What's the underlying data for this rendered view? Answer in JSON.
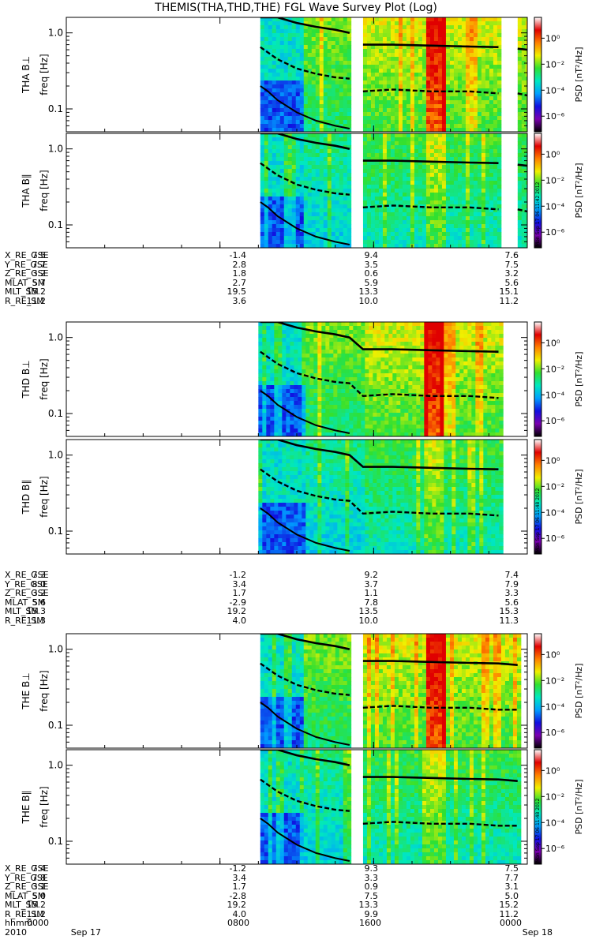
{
  "title": "THEMIS(THA,THD,THE) FGL Wave Survey Plot (Log)",
  "chart_data": {
    "type": "heatmap",
    "x_range_hours": [
      0,
      24
    ],
    "y_range_hz": [
      0.05,
      1.6
    ],
    "y_scale": "log",
    "y_ticks": [
      "1.0",
      "0.1"
    ],
    "y_tick_values": [
      1.0,
      0.1
    ],
    "colorbar": {
      "title": "PSD [nT²/Hz]",
      "tick_exponents": [
        0,
        -2,
        -4,
        -6
      ],
      "tick_labels": [
        "10⁰",
        "10⁻²",
        "10⁻⁴",
        "10⁻⁶"
      ],
      "colors": [
        "#000000",
        "#7a00b0",
        "#1010e0",
        "#00a0ff",
        "#00e8c0",
        "#30e030",
        "#f0f000",
        "#ff8000",
        "#e00000",
        "#ffffff"
      ]
    },
    "panels": [
      {
        "probe": "THA",
        "ylabel": "THA B⊥",
        "ylabel2": "freq [Hz]",
        "data_segments": [
          [
            10.1,
            14.75
          ],
          [
            15.45,
            22.55
          ],
          [
            23.5,
            24
          ]
        ],
        "intensity": "high",
        "stamp": ""
      },
      {
        "probe": "THA",
        "ylabel": "THA B∥",
        "ylabel2": "freq [Hz]",
        "data_segments": [
          [
            10.1,
            14.75
          ],
          [
            15.45,
            22.55
          ],
          [
            23.5,
            24
          ]
        ],
        "intensity": "medium",
        "stamp": "Mon Sep 17 06:11:42 2012"
      },
      {
        "probe": "THD",
        "ylabel": "THD B⊥",
        "ylabel2": "freq [Hz]",
        "data_segments": [
          [
            10.0,
            22.55
          ]
        ],
        "intensity": "high",
        "stamp": ""
      },
      {
        "probe": "THD",
        "ylabel": "THD B∥",
        "ylabel2": "freq [Hz]",
        "data_segments": [
          [
            10.0,
            22.55
          ]
        ],
        "intensity": "medium",
        "stamp": "Mon Sep 17 06:11:48 2012"
      },
      {
        "probe": "THE",
        "ylabel": "THE B⊥",
        "ylabel2": "freq [Hz]",
        "data_segments": [
          [
            10.1,
            14.75
          ],
          [
            15.45,
            23.5
          ]
        ],
        "intensity": "high",
        "stamp": ""
      },
      {
        "probe": "THE",
        "ylabel": "THE B∥",
        "ylabel2": "freq [Hz]",
        "data_segments": [
          [
            10.1,
            14.75
          ],
          [
            15.45,
            23.5
          ]
        ],
        "intensity": "medium",
        "stamp": "Mon Sep 17 06:11:48 2012"
      }
    ],
    "gyro_lines": {
      "fgc_curve": [
        [
          10.1,
          2.0
        ],
        [
          11,
          1.6
        ],
        [
          12,
          1.35
        ],
        [
          13,
          1.2
        ],
        [
          14,
          1.1
        ],
        [
          14.75,
          1.0
        ],
        [
          15.45,
          0.7
        ],
        [
          17,
          0.7
        ],
        [
          19,
          0.68
        ],
        [
          21,
          0.66
        ],
        [
          22.5,
          0.65
        ],
        [
          23.5,
          0.62
        ],
        [
          24,
          0.6
        ]
      ],
      "half_curve": [
        [
          10.1,
          0.65
        ],
        [
          11,
          0.45
        ],
        [
          12,
          0.34
        ],
        [
          13,
          0.29
        ],
        [
          14,
          0.26
        ],
        [
          14.75,
          0.25
        ],
        [
          15.45,
          0.17
        ],
        [
          17,
          0.18
        ],
        [
          19,
          0.17
        ],
        [
          21,
          0.17
        ],
        [
          22.5,
          0.16
        ],
        [
          23.5,
          0.16
        ],
        [
          24,
          0.15
        ]
      ],
      "tenth_curve": [
        [
          10.1,
          0.2
        ],
        [
          10.5,
          0.17
        ],
        [
          11,
          0.13
        ],
        [
          12,
          0.09
        ],
        [
          13,
          0.07
        ],
        [
          14,
          0.06
        ],
        [
          14.75,
          0.055
        ]
      ]
    },
    "ephemeris_labels": [
      "X_RE_GSE",
      "Y_RE_GSE",
      "Z_RE_GSE",
      "MLAT_SM",
      "MLT_SM",
      "R_RE_SM"
    ],
    "ephemeris": [
      {
        "probe": "THA",
        "rows": [
          [
            "7.5",
            "-1.4",
            "9.4",
            "7.6"
          ],
          [
            "7.7",
            "2.8",
            "3.5",
            "7.5"
          ],
          [
            "3.2",
            "1.8",
            "0.6",
            "3.2"
          ],
          [
            "5.7",
            "2.7",
            "5.9",
            "5.6"
          ],
          [
            "15.2",
            "19.5",
            "13.3",
            "15.1"
          ],
          [
            "11.2",
            "3.6",
            "10.0",
            "11.2"
          ]
        ]
      },
      {
        "probe": "THD",
        "rows": [
          [
            "7.3",
            "-1.2",
            "9.2",
            "7.4"
          ],
          [
            "8.0",
            "3.4",
            "3.7",
            "7.9"
          ],
          [
            "3.2",
            "1.7",
            "1.1",
            "3.3"
          ],
          [
            "5.6",
            "-2.9",
            "7.8",
            "5.6"
          ],
          [
            "15.3",
            "19.2",
            "13.5",
            "15.3"
          ],
          [
            "11.3",
            "4.0",
            "10.0",
            "11.3"
          ]
        ]
      },
      {
        "probe": "THE",
        "rows": [
          [
            "7.4",
            "-1.2",
            "9.3",
            "7.5"
          ],
          [
            "7.8",
            "3.4",
            "3.3",
            "7.7"
          ],
          [
            "3.1",
            "1.7",
            "0.9",
            "3.1"
          ],
          [
            "5.0",
            "-2.8",
            "7.5",
            "5.0"
          ],
          [
            "15.2",
            "19.2",
            "13.3",
            "15.2"
          ],
          [
            "11.2",
            "4.0",
            "9.9",
            "11.2"
          ]
        ]
      }
    ],
    "time_row": {
      "label": "hhmm",
      "values": [
        "0000",
        "0800",
        "1600",
        "0000"
      ]
    },
    "date_row": {
      "label": "2010",
      "start": "Sep 17",
      "end": "Sep 18"
    }
  }
}
